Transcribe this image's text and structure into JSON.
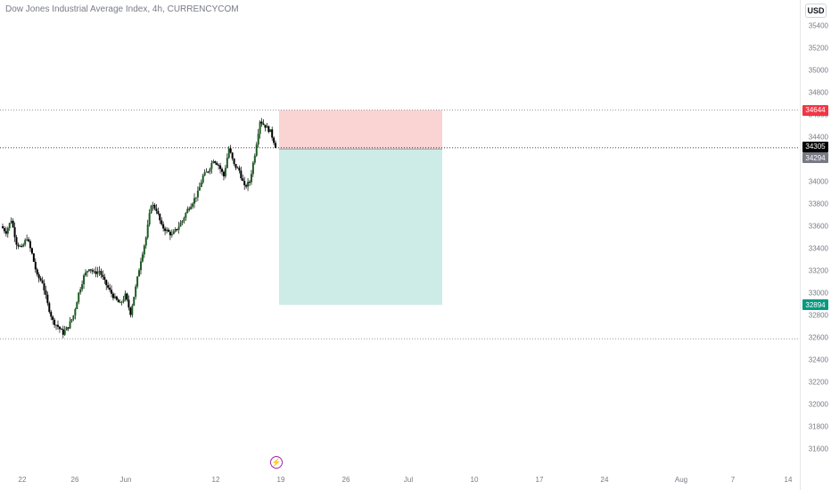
{
  "title": "Dow Jones Industrial Average Index, 4h, CURRENCYCOM",
  "currency": "USD",
  "colors": {
    "up": "#26a69a",
    "down": "#ef5350",
    "candle_body": "#000000",
    "stop_zone": "#fad3d3",
    "target_zone": "#cdebe7",
    "tag_stop": "#f23645",
    "tag_current": "#000000",
    "tag_entry": "#787b86",
    "tag_target": "#089981"
  },
  "price_ticks": [
    "35400",
    "35200",
    "35000",
    "34800",
    "34600",
    "34400",
    "34200",
    "34000",
    "33800",
    "33600",
    "33400",
    "33200",
    "33000",
    "32800",
    "32600",
    "32400",
    "32200",
    "32000",
    "31800",
    "31600"
  ],
  "date_ticks": [
    "22",
    "26",
    "Jun",
    "12",
    "19",
    "26",
    "Jul",
    "10",
    "17",
    "24",
    "Aug",
    "7",
    "14"
  ],
  "price_tags": {
    "stop": "34644",
    "current": "34305",
    "entry": "34294",
    "target": "32894"
  },
  "event_icon": "lightning-icon",
  "position": {
    "type": "short",
    "entry": 34294,
    "stop": 34644,
    "target": 32894
  },
  "reference_lines": [
    34644,
    34305,
    32590
  ],
  "chart_data": {
    "type": "candlestick",
    "interval": "4h",
    "ylim": [
      31500,
      35500
    ],
    "y_scale": "linear",
    "grid": false,
    "close_path": [
      33600,
      33550,
      33660,
      33450,
      33400,
      33500,
      33350,
      33150,
      33100,
      32900,
      32750,
      32700,
      32640,
      32700,
      32800,
      33000,
      33150,
      33230,
      33180,
      33200,
      33100,
      33020,
      32950,
      32900,
      32980,
      32820,
      33050,
      33300,
      33500,
      33800,
      33750,
      33600,
      33560,
      33520,
      33580,
      33650,
      33750,
      33820,
      33900,
      34050,
      34100,
      34200,
      34150,
      34050,
      34300,
      34150,
      34100,
      33950,
      34000,
      34250,
      34550,
      34500,
      34450,
      34320
    ]
  }
}
